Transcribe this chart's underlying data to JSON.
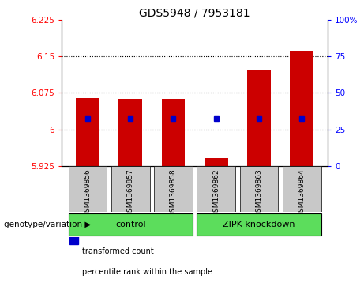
{
  "title": "GDS5948 / 7953181",
  "samples": [
    "GSM1369856",
    "GSM1369857",
    "GSM1369858",
    "GSM1369862",
    "GSM1369863",
    "GSM1369864"
  ],
  "bar_tops": [
    6.065,
    6.063,
    6.063,
    5.942,
    6.122,
    6.162
  ],
  "blue_positions": [
    6.022,
    6.022,
    6.022,
    6.022,
    6.022,
    6.022
  ],
  "baseline": 5.925,
  "ylim_left": [
    5.925,
    6.225
  ],
  "ylim_right": [
    0,
    100
  ],
  "yticks_left": [
    5.925,
    6.0,
    6.075,
    6.15,
    6.225
  ],
  "yticks_right": [
    0,
    25,
    50,
    75,
    100
  ],
  "ytick_labels_left": [
    "5.925",
    "6",
    "6.075",
    "6.15",
    "6.225"
  ],
  "ytick_labels_right": [
    "0",
    "25",
    "50",
    "75",
    "100%"
  ],
  "hlines": [
    6.0,
    6.075,
    6.15
  ],
  "groups": [
    {
      "label": "control",
      "indices": [
        0,
        1,
        2
      ],
      "color": "#5cdd5c"
    },
    {
      "label": "ZIPK knockdown",
      "indices": [
        3,
        4,
        5
      ],
      "color": "#5cdd5c"
    }
  ],
  "bar_color": "#cc0000",
  "blue_color": "#0000cc",
  "bar_width": 0.55,
  "genotype_label": "genotype/variation",
  "legend_items": [
    {
      "label": "transformed count",
      "color": "#cc0000"
    },
    {
      "label": "percentile rank within the sample",
      "color": "#0000cc"
    }
  ],
  "sample_cell_color": "#c8c8c8",
  "title_fontsize": 10
}
